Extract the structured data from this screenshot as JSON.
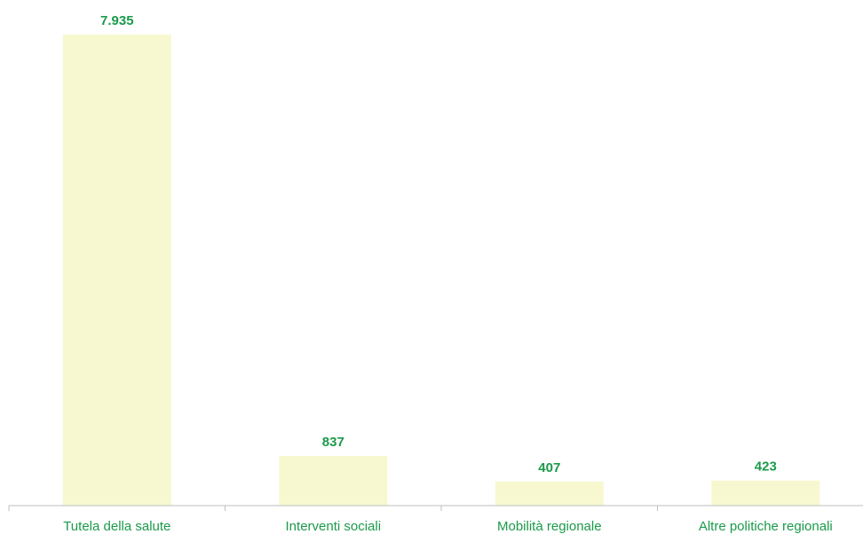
{
  "chart_data": {
    "type": "bar",
    "categories": [
      "Tutela della salute",
      "Interventi sociali",
      "Mobilità regionale",
      "Altre politiche regionali"
    ],
    "values": [
      7935,
      837,
      407,
      423
    ],
    "value_labels": [
      "7.935",
      "837",
      "407",
      "423"
    ],
    "title": "",
    "xlabel": "",
    "ylabel": "",
    "ylim": [
      0,
      7935
    ],
    "grid": false,
    "legend": "none",
    "colors": {
      "bar": "#f7f8d0",
      "text": "#1a9a4a",
      "axis": "#bfbfbf"
    }
  }
}
